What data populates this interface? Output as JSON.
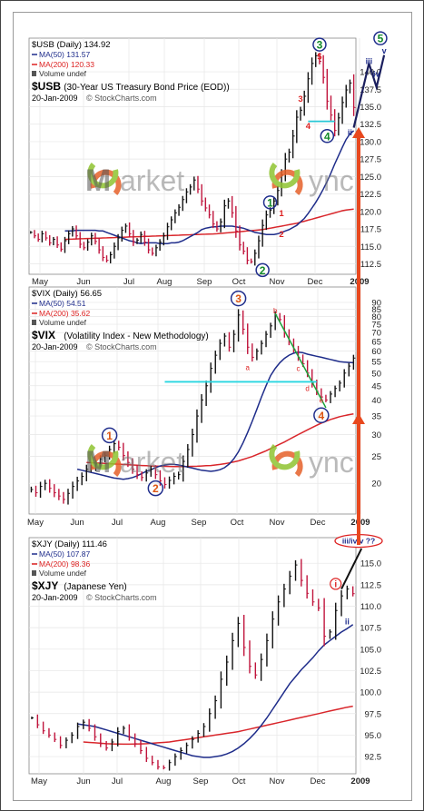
{
  "watermark": {
    "left": "Market",
    "right": "Sync",
    "left_m": "M",
    "left_rest": "arket",
    "right_rest": "ync"
  },
  "big_arrow_color": "#e8481e",
  "chart_data": [
    {
      "type": "line",
      "symbol_line": "$USB (Daily) 134.92",
      "ma50_label": "MA(50) 131.57",
      "ma200_label": "MA(200) 120.33",
      "volume_label": "Volume undef",
      "name": "$USB",
      "description": "(30-Year US Treasury Bond Price (EOD))",
      "date": "20-Jan-2009",
      "credit": "© StockCharts.com",
      "ylim": [
        111,
        143
      ],
      "yticks": [
        "112.5",
        "115.0",
        "117.5",
        "120.0",
        "122.5",
        "125.0",
        "127.5",
        "130.0",
        "132.5",
        "135.0",
        "137.5",
        "140.0"
      ],
      "xticks": [
        "May",
        "Jun",
        "Jul",
        "Aug",
        "Sep",
        "Oct",
        "Nov",
        "Dec",
        "2009"
      ],
      "price": [
        117,
        116.5,
        116,
        116.8,
        116.2,
        115.5,
        116,
        115.2,
        114.6,
        115.8,
        116.8,
        117.5,
        116.5,
        115.3,
        114.8,
        115.6,
        116.5,
        115.7,
        114.5,
        113.4,
        113,
        113.8,
        115,
        116.2,
        117.3,
        117.9,
        116.8,
        115.6,
        115.9,
        116.7,
        115.6,
        114.5,
        114,
        114.8,
        115.6,
        116.5,
        117.8,
        118.8,
        119.8,
        120.6,
        121.7,
        122.8,
        123.5,
        124.5,
        123.2,
        121.5,
        120.5,
        119.5,
        118.2,
        117.5,
        118.5,
        120.8,
        121.5,
        119.8,
        117.2,
        115.2,
        114.3,
        113,
        112.8,
        114,
        115.8,
        118,
        119.5,
        120.2,
        121.5,
        123,
        125.2,
        127.5,
        128.5,
        130.8,
        133.5,
        134.5,
        136.5,
        139,
        141.2,
        142.3,
        141.5,
        139.2,
        135.8,
        133.8,
        131.6,
        133.4,
        135.6,
        137.4,
        138.4,
        134.9
      ],
      "ma50": [
        117.2,
        117.2,
        117.2,
        117.3,
        117.3,
        117.3,
        117.3,
        117.3,
        117.3,
        117.2,
        117.2,
        117,
        116.8,
        116.6,
        116.4,
        116.2,
        116,
        115.8,
        115.7,
        115.5,
        115.4,
        115.5,
        115.5,
        115.5,
        115.5,
        115.4,
        115.4,
        115.4,
        115.5,
        115.5,
        115.6,
        115.8,
        116.1,
        116.4,
        116.7,
        117,
        117.4,
        117.6,
        117.7,
        117.8,
        117.8,
        117.9,
        117.9,
        117.9,
        117.9,
        117.8,
        117.7,
        117.6,
        117.4,
        117.2,
        117,
        116.9,
        116.8,
        116.7,
        116.7,
        116.7,
        116.8,
        117,
        117.2,
        117.4,
        117.7,
        118,
        118.5,
        119,
        119.7,
        120.5,
        121.3,
        122.2,
        123.2,
        124.3,
        125.5,
        126.8,
        128,
        129.2,
        130.3,
        131.1,
        131.57
      ],
      "ma200": [
        116,
        116.02,
        116.04,
        116.06,
        116.08,
        116.1,
        116.12,
        116.14,
        116.16,
        116.18,
        116.2,
        116.22,
        116.24,
        116.26,
        116.28,
        116.3,
        116.32,
        116.34,
        116.36,
        116.38,
        116.4,
        116.42,
        116.44,
        116.46,
        116.48,
        116.5,
        116.52,
        116.54,
        116.56,
        116.58,
        116.6,
        116.62,
        116.64,
        116.66,
        116.68,
        116.7,
        116.72,
        116.74,
        116.76,
        116.78,
        116.8,
        116.85,
        116.9,
        116.95,
        117,
        117.05,
        117.1,
        117.15,
        117.2,
        117.25,
        117.3,
        117.35,
        117.4,
        117.5,
        117.6,
        117.7,
        117.8,
        117.9,
        118,
        118.1,
        118.2,
        118.3,
        118.45,
        118.6,
        118.75,
        118.9,
        119.05,
        119.2,
        119.35,
        119.5,
        119.65,
        119.8,
        119.95,
        120.1,
        120.2,
        120.27,
        120.33
      ],
      "wave_labels": [
        {
          "text": "1",
          "kind": "green",
          "i": 63,
          "v": 121.3
        },
        {
          "text": "2",
          "kind": "green",
          "i": 61,
          "v": 111.6
        },
        {
          "text": "3",
          "kind": "green",
          "i": 76,
          "v": 143.9
        },
        {
          "text": "4",
          "kind": "green",
          "i": 78,
          "v": 130.8
        },
        {
          "text": "5",
          "kind": "green",
          "i": 92,
          "v": 144.8
        },
        {
          "text": "1",
          "kind": "red",
          "i": 66,
          "v": 119.8
        },
        {
          "text": "2",
          "kind": "red",
          "i": 66,
          "v": 116.8
        },
        {
          "text": "3",
          "kind": "red",
          "i": 71,
          "v": 136.2
        },
        {
          "text": "4",
          "kind": "red",
          "i": 73,
          "v": 132.3
        },
        {
          "text": "5",
          "kind": "red",
          "i": 76,
          "v": 142.2
        },
        {
          "text": "iii",
          "kind": "blue",
          "i": 89,
          "v": 141.5
        },
        {
          "text": "iv",
          "kind": "blue",
          "i": 91,
          "v": 139.7
        },
        {
          "text": "ii",
          "kind": "blue",
          "i": 84,
          "v": 131.3
        },
        {
          "text": "v",
          "kind": "blue",
          "i": 93,
          "v": 143.0
        }
      ]
    },
    {
      "type": "line",
      "symbol_line": "$VIX (Daily) 56.65",
      "ma50_label": "MA(50) 54.51",
      "ma200_label": "MA(200) 35.62",
      "volume_label": "Volume undef",
      "name": "$VIX",
      "description": "(Volatility Index - New Methodology)",
      "date": "20-Jan-2009",
      "credit": "© StockCharts.com",
      "log": true,
      "ylim": [
        15.5,
        92
      ],
      "yticks": [
        "20",
        "25",
        "30",
        "35",
        "40",
        "45",
        "50",
        "55",
        "60",
        "65",
        "70",
        "75",
        "80",
        "85",
        "90"
      ],
      "xticks": [
        "May",
        "Jun",
        "Jul",
        "Aug",
        "Sep",
        "Oct",
        "Nov",
        "Dec",
        "2009"
      ],
      "price": [
        19,
        18.5,
        19.5,
        20,
        19.2,
        18.5,
        18,
        17.5,
        18.4,
        19.5,
        20.4,
        21.2,
        22.5,
        22.8,
        23.5,
        24.5,
        25.2,
        26.5,
        27.8,
        27,
        25.2,
        23.8,
        22.5,
        21.5,
        21,
        21.8,
        22.5,
        21.5,
        20.4,
        19.8,
        20.5,
        21.2,
        21.5,
        24,
        26.5,
        30,
        35,
        40,
        45,
        52,
        58,
        64,
        68,
        62,
        69,
        81,
        72,
        62,
        57,
        60,
        64,
        69,
        74,
        81,
        78,
        70,
        65,
        61,
        57,
        54,
        50,
        46,
        43,
        41,
        40,
        42,
        44,
        46,
        50,
        53,
        56.65
      ],
      "ma50": [
        22.5,
        22.3,
        22.1,
        21.9,
        21.7,
        21.5,
        21.3,
        21.1,
        20.9,
        20.8,
        20.7,
        20.8,
        21,
        21.3,
        21.7,
        22.1,
        22.4,
        22.8,
        23.1,
        23.3,
        23.4,
        23.4,
        23.3,
        23.1,
        22.9,
        22.7,
        22.5,
        22.3,
        22.2,
        22.1,
        22.2,
        22.4,
        22.8,
        23.5,
        24.5,
        26,
        28,
        30.5,
        33.5,
        37,
        41,
        45,
        49,
        52,
        54.5,
        56.5,
        58,
        59,
        59.5,
        59.2,
        58.5,
        58,
        57.5,
        57,
        56.5,
        56,
        55.5,
        55,
        54.8,
        54.6,
        54.51
      ],
      "ma200": [
        23.8,
        23.75,
        23.7,
        23.65,
        23.6,
        23.55,
        23.5,
        23.45,
        23.4,
        23.35,
        23.3,
        23.25,
        23.2,
        23.15,
        23.1,
        23.08,
        23.06,
        23.04,
        23.02,
        23,
        23,
        23,
        23.02,
        23.04,
        23.06,
        23.1,
        23.15,
        23.2,
        23.3,
        23.4,
        23.55,
        23.7,
        23.9,
        24.1,
        24.4,
        24.7,
        25,
        25.4,
        25.8,
        26.2,
        26.7,
        27.2,
        27.7,
        28.2,
        28.8,
        29.4,
        30,
        30.6,
        31.2,
        31.8,
        32.4,
        33,
        33.5,
        34,
        34.4,
        34.8,
        35.1,
        35.4,
        35.62
      ],
      "trendline_label": "b",
      "wave_labels": [
        {
          "text": "1",
          "kind": "blue",
          "i": 17,
          "v": 29.8
        },
        {
          "text": "2",
          "kind": "blue",
          "i": 27,
          "v": 19.2
        },
        {
          "text": "3",
          "kind": "red",
          "i": 45,
          "v": 93
        },
        {
          "text": "4",
          "kind": "blue",
          "i": 63,
          "v": 35.2
        },
        {
          "text": "a",
          "kind": "redsmall",
          "i": 47,
          "v": 52.5
        },
        {
          "text": "b",
          "kind": "redsmall",
          "i": 53,
          "v": 84
        },
        {
          "text": "c",
          "kind": "redsmall",
          "i": 58,
          "v": 52
        },
        {
          "text": "d",
          "kind": "redsmall",
          "i": 60,
          "v": 44
        },
        {
          "text": "e",
          "kind": "redsmall",
          "i": 63,
          "v": 40
        }
      ]
    },
    {
      "type": "line",
      "symbol_line": "$XJY (Daily) 111.46",
      "ma50_label": "MA(50) 107.87",
      "ma200_label": "MA(200) 98.36",
      "volume_label": "Volume undef",
      "name": "$XJY",
      "description": "(Japanese Yen)",
      "date": "20-Jan-2009",
      "credit": "© StockCharts.com",
      "ylim": [
        90.5,
        116.5
      ],
      "yticks": [
        "92.5",
        "95.0",
        "97.5",
        "100.0",
        "102.5",
        "105.0",
        "107.5",
        "110.0",
        "112.5",
        "115.0"
      ],
      "xticks": [
        "May",
        "Jun",
        "Jul",
        "Aug",
        "Sep",
        "Oct",
        "Nov",
        "Dec",
        "2009"
      ],
      "price": [
        97,
        96.2,
        95.5,
        95,
        94.5,
        93.8,
        94.4,
        95,
        96,
        96.5,
        95.8,
        94.8,
        94,
        93.5,
        94.2,
        95.4,
        95.8,
        94.8,
        94,
        93.2,
        92.3,
        91.8,
        91.3,
        91.2,
        91.8,
        92.5,
        93.2,
        93.8,
        94.5,
        95.2,
        96,
        97.5,
        99,
        101.5,
        103.5,
        106,
        108,
        105.2,
        103,
        102,
        103.8,
        106,
        108.5,
        110.5,
        112,
        113.5,
        114.8,
        113,
        111.5,
        110.5,
        109.8,
        106.5,
        107,
        109.5,
        111.2,
        112,
        111.46
      ],
      "ma50": [
        96.3,
        96.2,
        96.1,
        96,
        95.8,
        95.6,
        95.4,
        95.2,
        95,
        94.8,
        94.6,
        94.4,
        94.2,
        94,
        93.8,
        93.6,
        93.4,
        93.2,
        93,
        92.8,
        92.6,
        92.5,
        92.4,
        92.4,
        92.5,
        92.6,
        92.8,
        93.1,
        93.5,
        94,
        94.6,
        95.3,
        96.1,
        97,
        98,
        99,
        100,
        101,
        101.8,
        102.6,
        103.3,
        104,
        104.8,
        105.5,
        106,
        106.5,
        107,
        107.4,
        107.87
      ],
      "ma200": [
        94.2,
        94.15,
        94.1,
        94.05,
        94,
        93.98,
        93.96,
        93.95,
        93.95,
        93.96,
        93.98,
        94,
        94.05,
        94.1,
        94.15,
        94.2,
        94.3,
        94.4,
        94.5,
        94.6,
        94.7,
        94.8,
        94.9,
        95,
        95.1,
        95.2,
        95.3,
        95.4,
        95.55,
        95.7,
        95.85,
        96,
        96.15,
        96.3,
        96.45,
        96.6,
        96.75,
        96.9,
        97.05,
        97.2,
        97.35,
        97.5,
        97.65,
        97.8,
        97.95,
        98.1,
        98.25,
        98.36
      ],
      "wave_labels": [
        {
          "text": "i",
          "kind": "red",
          "i": 53,
          "v": 112.6
        },
        {
          "text": "ii",
          "kind": "blue",
          "i": 55,
          "v": 108.2
        },
        {
          "text": "iii/iv/v ??",
          "kind": "redoval",
          "i": 57,
          "v": 117.6
        }
      ]
    }
  ]
}
